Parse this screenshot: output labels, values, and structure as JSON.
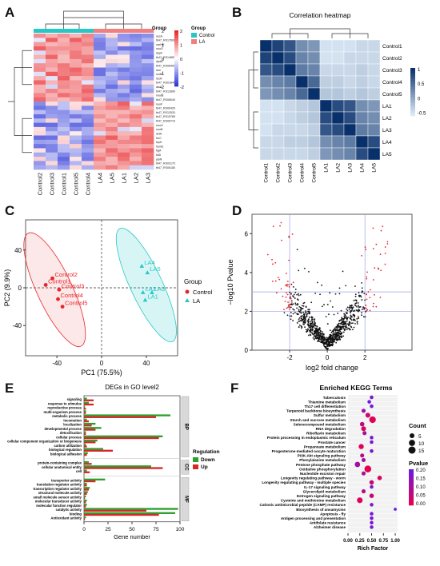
{
  "panel_labels": {
    "A": "A",
    "B": "B",
    "C": "C",
    "D": "D",
    "E": "E",
    "F": "F"
  },
  "colors": {
    "control": "#27c7c7",
    "la": "#f08080",
    "heat_low": "#2c35d8",
    "heat_mid": "#ffffff",
    "heat_high": "#e8262a",
    "corr_dark": "#08306b",
    "corr_light": "#deebf7",
    "up": "#d62728",
    "down": "#2ca02c"
  },
  "chart_data": [
    {
      "type": "heatmap",
      "panel": "A",
      "columns": [
        "Control2",
        "Control3",
        "Control1",
        "Control5",
        "Control4",
        "LA4",
        "LA5",
        "LA1",
        "LA2",
        "LA3"
      ],
      "column_groups": [
        "Control",
        "Control",
        "Control",
        "Control",
        "Control",
        "LA",
        "LA",
        "LA",
        "LA",
        "LA"
      ],
      "rows": [
        "secA",
        "tb47_RS17690",
        "narHH",
        "nuoG",
        "depF",
        "tb47_RS14855",
        "dpdA",
        "tb47_RS08455",
        "dnn",
        "mobA",
        "rbcR",
        "tb47_RS01840",
        "atsA",
        "tb47_RS12890",
        "modB",
        "tb47_RS08040",
        "nuoF",
        "tb47_RS00420",
        "tb47_RS12520",
        "tb47_RS15765",
        "tb47_RS06710",
        "nuoH",
        "nuoB",
        "dctA",
        "truC",
        "lspA",
        "hemE",
        "ftgA",
        "tslD",
        "ylpN",
        "tb47_RS03170",
        "tb47_RS05180"
      ],
      "legend_title": "Group",
      "legend_entries": [
        "Control",
        "LA"
      ],
      "colorbar_ticks": [
        "2",
        "1",
        "0",
        "-1",
        "-2"
      ],
      "side_ticks": [
        "2",
        "1",
        "0",
        "-1",
        "-2"
      ]
    },
    {
      "type": "heatmap",
      "panel": "B",
      "title": "Correlation heatmap",
      "row_labels": [
        "Control1",
        "Control2",
        "Control3",
        "Control4",
        "Control5",
        "LA1",
        "LA2",
        "LA3",
        "LA4",
        "LA5"
      ],
      "col_labels": [
        "Control1",
        "Control2",
        "Control3",
        "Control4",
        "Control5",
        "LA1",
        "LA2",
        "LA3",
        "LA4",
        "LA5"
      ],
      "colorbar_ticks": [
        "1",
        "0.5",
        "0",
        "-0.5"
      ],
      "values": [
        [
          1,
          0.9,
          0.8,
          0.5,
          0.45,
          0.05,
          0.05,
          0.05,
          0.1,
          0.1
        ],
        [
          0.9,
          1,
          0.85,
          0.55,
          0.5,
          0.05,
          0.05,
          0.1,
          0.1,
          0.1
        ],
        [
          0.8,
          0.85,
          1,
          0.6,
          0.55,
          0.1,
          0.1,
          0.1,
          0.15,
          0.1
        ],
        [
          0.5,
          0.55,
          0.6,
          1,
          0.7,
          0.15,
          0.15,
          0.1,
          0.15,
          0.1
        ],
        [
          0.45,
          0.5,
          0.55,
          0.7,
          1,
          0.2,
          0.2,
          0.15,
          0.2,
          0.15
        ],
        [
          0.05,
          0.05,
          0.1,
          0.15,
          0.2,
          1,
          0.85,
          0.8,
          0.5,
          0.45
        ],
        [
          0.05,
          0.05,
          0.1,
          0.15,
          0.2,
          0.85,
          1,
          0.85,
          0.55,
          0.5
        ],
        [
          0.05,
          0.1,
          0.1,
          0.1,
          0.15,
          0.8,
          0.85,
          1,
          0.6,
          0.55
        ],
        [
          0.1,
          0.1,
          0.15,
          0.15,
          0.2,
          0.5,
          0.55,
          0.6,
          1,
          0.85
        ],
        [
          0.1,
          0.1,
          0.1,
          0.1,
          0.15,
          0.45,
          0.5,
          0.55,
          0.85,
          1
        ]
      ]
    },
    {
      "type": "scatter",
      "panel": "C",
      "xlabel": "PC1 (75.5%)",
      "ylabel": "PC2 (9.9%)",
      "xlim": [
        -68,
        68
      ],
      "ylim": [
        -72,
        72
      ],
      "xticks": [
        -40,
        0,
        40
      ],
      "yticks": [
        40,
        0,
        -40
      ],
      "legend_title": "Group",
      "series": [
        {
          "name": "Control",
          "points": [
            {
              "label": "Control1",
              "x": -50,
              "y": 3
            },
            {
              "label": "Control2",
              "x": -44,
              "y": 10
            },
            {
              "label": "Control3",
              "x": -38,
              "y": -2
            },
            {
              "label": "Control4",
              "x": -39,
              "y": -12
            },
            {
              "label": "Control5",
              "x": -35,
              "y": -20
            }
          ]
        },
        {
          "name": "LA",
          "points": [
            {
              "label": "LA4",
              "x": 36,
              "y": 23
            },
            {
              "label": "LA5",
              "x": 41,
              "y": 16
            },
            {
              "label": "LA2",
              "x": 37,
              "y": -5
            },
            {
              "label": "LA3",
              "x": 45,
              "y": -5
            },
            {
              "label": "LA1",
              "x": 39,
              "y": -13
            }
          ]
        }
      ]
    },
    {
      "type": "scatter",
      "panel": "D",
      "xlabel": "log2 fold change",
      "ylabel": "−log10 Pvalue",
      "xlim": [
        -4,
        4.5
      ],
      "ylim": [
        0,
        7
      ],
      "xticks": [
        -2,
        0,
        2
      ],
      "yticks": [
        0,
        2,
        4,
        6
      ],
      "vlines": [
        -2,
        2
      ],
      "hlines": [
        2,
        3
      ]
    },
    {
      "type": "bar",
      "panel": "E",
      "title": "DEGs in GO level2",
      "xlabel": "Gene number",
      "xlim": [
        0,
        100
      ],
      "xticks": [
        0,
        25,
        50,
        75,
        100
      ],
      "legend_title": "Regulation",
      "legend_entries": [
        "Down",
        "Up"
      ],
      "groups": [
        {
          "name": "BP",
          "categories": [
            "signaling",
            "response to stimulus",
            "reproductive process",
            "multi-organism process",
            "metabolic process",
            "locomotion",
            "localization",
            "developmental process",
            "detoxification",
            "cellular process",
            "cellular component organization or biogenesis",
            "carbon utilization",
            "biological regulation",
            "biological adhesion"
          ],
          "down": [
            3,
            5,
            1,
            2,
            90,
            3,
            12,
            18,
            2,
            82,
            14,
            2,
            20,
            4
          ],
          "up": [
            10,
            10,
            2,
            2,
            75,
            5,
            8,
            12,
            2,
            78,
            12,
            3,
            30,
            3
          ]
        },
        {
          "name": "CC",
          "categories": [
            "protein-containing complex",
            "cellular anatomical entity",
            "cell"
          ],
          "down": [
            5,
            70,
            3
          ],
          "up": [
            8,
            82,
            6
          ]
        },
        {
          "name": "MF",
          "categories": [
            "transporter activity",
            "translation regulator activity",
            "transcription regulator activity",
            "structural molecule activity",
            "small molecule sensor activity",
            "molecular transducer activity",
            "molecular function regulator",
            "catalytic activity",
            "binding",
            "Antioxidant activity"
          ],
          "down": [
            22,
            3,
            6,
            4,
            2,
            3,
            3,
            98,
            95,
            2
          ],
          "up": [
            12,
            3,
            5,
            3,
            1,
            2,
            2,
            65,
            78,
            1
          ]
        }
      ]
    },
    {
      "type": "scatter",
      "panel": "F",
      "title": "Enriched KEGG Terms",
      "xlabel": "Rich Factor",
      "xlim": [
        0,
        1.05
      ],
      "xticks": [
        "0.00",
        "0.25",
        "0.50",
        "0.75",
        "1.00"
      ],
      "size_legend_title": "Count",
      "size_legend": [
        "5",
        "10",
        "15"
      ],
      "color_legend_title": "Pvalue",
      "color_legend": [
        "0.20",
        "0.15",
        "0.10",
        "0.05",
        "0.00"
      ],
      "terms": [
        "Tuberculosis",
        "Thiamine metabolism",
        "Th17 cell differentiation",
        "Terpenoid backbone biosynthesis",
        "Sulfur metabolism",
        "Starch and sucrose metabolism",
        "Selenocompound metabolism",
        "RNA degradation",
        "Riboflavin metabolism",
        "Protein processing in endoplasmic reticulum",
        "Prostate cancer",
        "Propanoate metabolism",
        "Progesterone-mediated oocyte maturation",
        "PI3K-Akt signaling pathway",
        "Phenylalanine metabolism",
        "Pentose phosphate pathway",
        "Oxidative phosphorylation",
        "Nucleotide excision repair",
        "Longevity regulating pathway - worm",
        "Longevity regulating pathway - multiple species",
        "IL-17 signaling pathway",
        "Glycerolipid metabolism",
        "Estrogen signaling pathway",
        "Cysteine and methionine metabolism",
        "Cationic antimicrobial peptide (CAMP) resistance",
        "Biosynthesis of ansamycins",
        "Apoptosis - fly",
        "Antigen processing and presentation",
        "Antifolate resistance",
        "Alzheimer disease"
      ],
      "rich_factor": [
        0.5,
        0.45,
        0.5,
        0.33,
        0.42,
        0.52,
        0.3,
        0.33,
        0.35,
        0.5,
        0.5,
        0.28,
        0.5,
        0.3,
        0.33,
        0.2,
        0.42,
        0.33,
        0.67,
        0.5,
        0.5,
        0.33,
        0.5,
        0.25,
        0.5,
        1.0,
        0.5,
        0.5,
        0.5,
        0.5
      ],
      "count": [
        2,
        2,
        2,
        3,
        5,
        12,
        4,
        5,
        3,
        2,
        2,
        6,
        2,
        3,
        3,
        7,
        13,
        3,
        4,
        4,
        2,
        3,
        4,
        8,
        2,
        1,
        2,
        2,
        2,
        2
      ],
      "pvalue": [
        0.18,
        0.2,
        0.18,
        0.12,
        0.05,
        0.01,
        0.07,
        0.03,
        0.1,
        0.18,
        0.18,
        0.02,
        0.18,
        0.08,
        0.1,
        0.12,
        0.01,
        0.1,
        0.03,
        0.05,
        0.18,
        0.08,
        0.05,
        0.02,
        0.18,
        0.2,
        0.18,
        0.18,
        0.18,
        0.18
      ]
    }
  ]
}
